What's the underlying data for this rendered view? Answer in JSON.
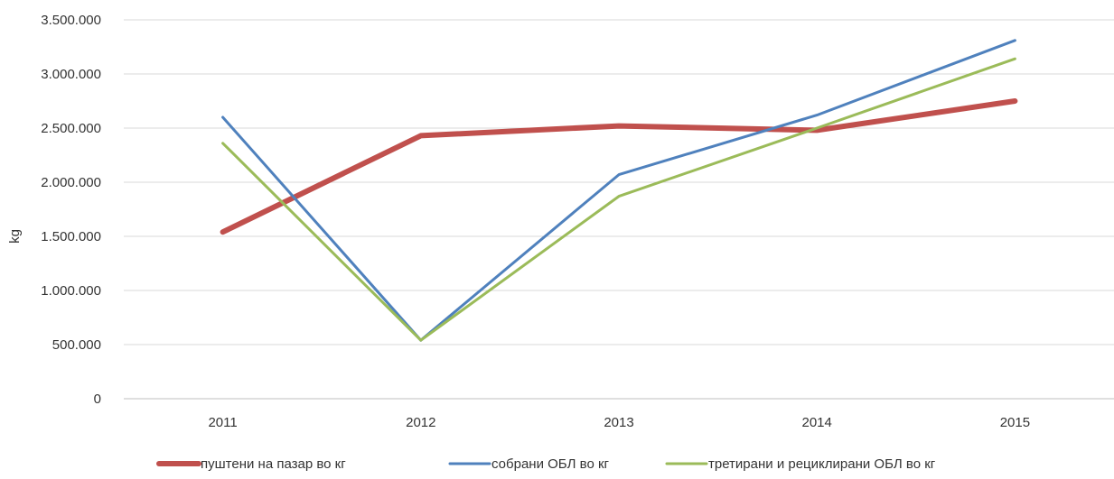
{
  "chart_data": {
    "type": "line",
    "title": "",
    "xlabel": "",
    "ylabel": "kg",
    "categories": [
      "2011",
      "2012",
      "2013",
      "2014",
      "2015"
    ],
    "ylim": [
      0,
      3500000
    ],
    "yticks": [
      0,
      500000,
      1000000,
      1500000,
      2000000,
      2500000,
      3000000,
      3500000
    ],
    "ytick_labels": [
      "0",
      "500.000",
      "1.000.000",
      "1.500.000",
      "2.000.000",
      "2.500.000",
      "3.000.000",
      "3.500.000"
    ],
    "grid": true,
    "legend_position": "bottom",
    "series": [
      {
        "name": "пуштени на пазар  во кг",
        "color": "#c0504d",
        "values": [
          1540000,
          2430000,
          2520000,
          2480000,
          2750000
        ]
      },
      {
        "name": "собрани ОБЛ  во кг",
        "color": "#4f81bd",
        "values": [
          2600000,
          540000,
          2070000,
          2620000,
          3310000
        ]
      },
      {
        "name": "третирани и рециклирани  ОБЛ  во кг",
        "color": "#9bbb59",
        "values": [
          2360000,
          540000,
          1870000,
          2500000,
          3140000
        ]
      }
    ]
  }
}
